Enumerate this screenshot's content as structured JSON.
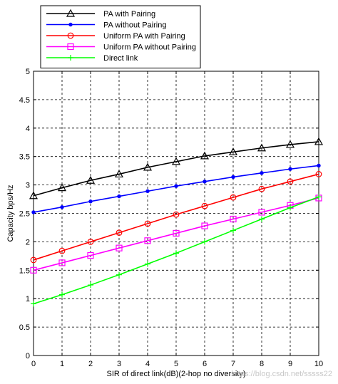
{
  "chart_data": {
    "type": "line",
    "title": "",
    "xlabel": "SIR of direct link(dB)(2-hop no diversity)",
    "ylabel": "Capacity bps/Hz",
    "xlim": [
      0,
      10
    ],
    "ylim": [
      0,
      5
    ],
    "x_ticks": [
      "0",
      "1",
      "2",
      "3",
      "4",
      "5",
      "6",
      "7",
      "8",
      "9",
      "10"
    ],
    "y_ticks": [
      "0",
      "0.5",
      "1",
      "1.5",
      "2",
      "2.5",
      "3",
      "3.5",
      "4",
      "4.5",
      "5"
    ],
    "grid": true,
    "legend_position": "top-left",
    "x": [
      0,
      1,
      2,
      3,
      4,
      5,
      6,
      7,
      8,
      9,
      10
    ],
    "series": [
      {
        "name": "PA with Pairing",
        "color": "#000000",
        "marker": "triangle",
        "values": [
          2.81,
          2.95,
          3.08,
          3.19,
          3.31,
          3.41,
          3.51,
          3.58,
          3.65,
          3.71,
          3.76
        ]
      },
      {
        "name": "PA without Pairing",
        "color": "#0000ff",
        "marker": "dot",
        "values": [
          2.52,
          2.61,
          2.71,
          2.8,
          2.89,
          2.98,
          3.06,
          3.14,
          3.21,
          3.28,
          3.34
        ]
      },
      {
        "name": "Uniform PA with Pairing",
        "color": "#ff0000",
        "marker": "circle",
        "values": [
          1.68,
          1.84,
          2.0,
          2.16,
          2.32,
          2.48,
          2.63,
          2.78,
          2.93,
          3.06,
          3.19
        ]
      },
      {
        "name": "Uniform PA without Pairing",
        "color": "#ff00ff",
        "marker": "square",
        "values": [
          1.5,
          1.63,
          1.76,
          1.89,
          2.02,
          2.15,
          2.28,
          2.4,
          2.52,
          2.64,
          2.77
        ]
      },
      {
        "name": "Direct link",
        "color": "#00ff00",
        "marker": "plus",
        "values": [
          0.91,
          1.07,
          1.24,
          1.42,
          1.61,
          1.8,
          2.0,
          2.2,
          2.4,
          2.6,
          2.79
        ]
      }
    ]
  },
  "watermark": "https://blog.csdn.net/sssss22"
}
